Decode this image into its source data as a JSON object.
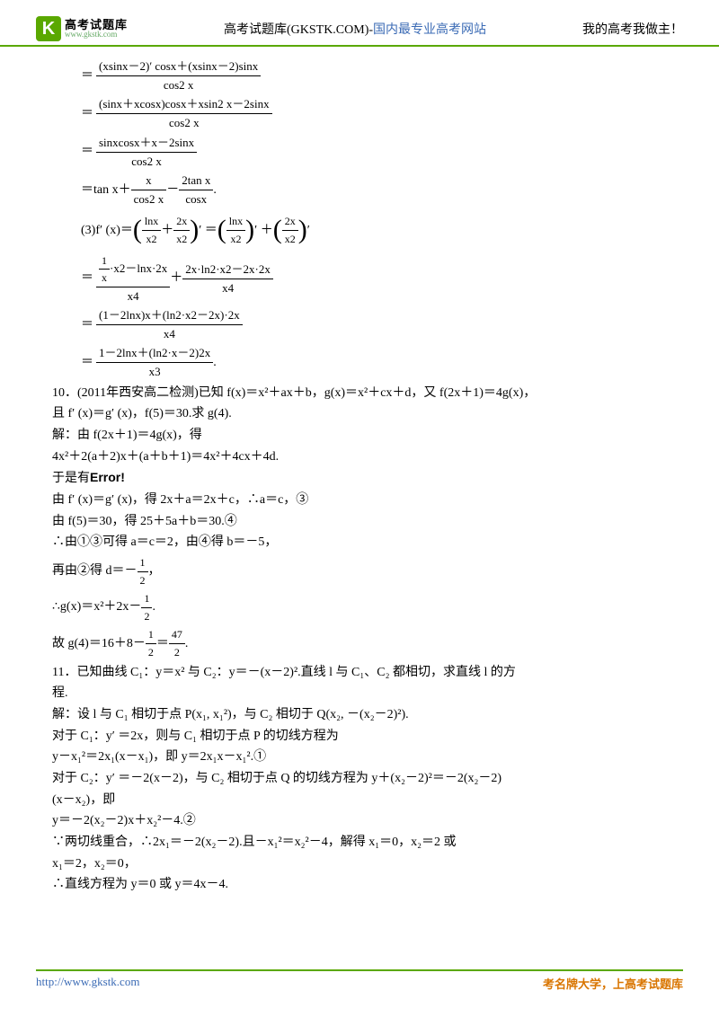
{
  "header": {
    "logo_letter": "K",
    "logo_cn": "高考试题库",
    "logo_url": "www.gkstk.com",
    "mid_black": "高考试题库(GKSTK.COM)-",
    "mid_blue": "国内最专业高考网站",
    "right": "我的高考我做主！"
  },
  "eqs": {
    "l1_num": "(xsinx－2)′ cosx＋(xsinx－2)sinx",
    "l1_den": "cos2 x",
    "l2_num": "(sinx＋xcosx)cosx＋xsin2 x－2sinx",
    "l2_den": "cos2 x",
    "l3_num": "sinxcosx＋x－2sinx",
    "l3_den": "cos2 x",
    "l4_pre": "＝tan x＋",
    "l4a_num": "x",
    "l4a_den": "cos2 x",
    "l4_minus": "－",
    "l4b_num": "2tan x",
    "l4b_den": "cosx",
    "l4_dot": " .",
    "l5_pre": "(3)f′  (x)＝",
    "l5a_num": "lnx",
    "l5a_den": "x2",
    "l5_plus": "＋",
    "l5b_num": "2x",
    "l5b_den": "x2",
    "l5_mid": "′ ＝",
    "l5c_num": "lnx",
    "l5c_den": "x2",
    "l5_mid2": "′ ＋",
    "l5d_num": "2x",
    "l5d_den": "x2",
    "l5_end": "′",
    "l6a_num_top": "1",
    "l6a_num_bot": "x",
    "l6a_rest": "·x2－lnx·2x",
    "l6a_den": "x4",
    "l6_plus": "＋",
    "l6b_num": "2x·ln2·x2－2x·2x",
    "l6b_den": "x4",
    "l7_num": "(1－2lnx)x＋(ln2·x2－2x)·2x",
    "l7_den": "x4",
    "l8_num": "1－2lnx＋(ln2·x－2)2x",
    "l8_den": "x3",
    "l8_dot": " ."
  },
  "p10": {
    "q": "10．(2011年西安高二检测)已知 f(x)＝x²＋ax＋b，g(x)＝x²＋cx＋d，又 f(2x＋1)＝4g(x)，",
    "q2": "且 f′ (x)＝g′ (x)，f(5)＝30.求 g(4).",
    "s1": "解：由 f(2x＋1)＝4g(x)，得",
    "s2": "4x²＋2(a＋2)x＋(a＋b＋1)＝4x²＋4cx＋4d.",
    "s3_pre": "于是有",
    "s3_err": "Error!",
    "s4": "由 f′ (x)＝g′ (x)，得 2x＋a＝2x＋c，∴a＝c，③",
    "s5": "由 f(5)＝30，得 25＋5a＋b＝30.④",
    "s6": "∴由①③可得 a＝c＝2，由④得 b＝－5，",
    "s7_pre": "再由②得 d＝－",
    "s7_num": "1",
    "s7_den": "2",
    "s7_end": "，",
    "s8_pre": "∴g(x)＝x²＋2x－",
    "s8_num": "1",
    "s8_den": "2",
    "s8_end": ".",
    "s9_pre": "故 g(4)＝16＋8－",
    "s9a_num": "1",
    "s9a_den": "2",
    "s9_mid": "＝",
    "s9b_num": "47",
    "s9b_den": "2",
    "s9_end": " ."
  },
  "p11": {
    "q": "11．已知曲线 C₁：y＝x² 与 C₂：y＝－(x－2)².直线 l 与 C₁、C₂ 都相切，求直线 l 的方",
    "q2": "程.",
    "s1": "解：设 l 与 C₁ 相切于点 P(x₁, x₁²)，与 C₂ 相切于 Q(x₂, －(x₂－2)²).",
    "s2": "对于 C₁：y′ ＝2x，则与 C₁ 相切于点 P 的切线方程为",
    "s3": "y－x₁²＝2x₁(x－x₁)，即 y＝2x₁x－x₁².①",
    "s4": "对于 C₂：y′ ＝－2(x－2)，与 C₂ 相切于点 Q 的切线方程为 y＋(x₂－2)²＝－2(x₂－2)",
    "s4b": "(x－x₂)，即",
    "s5": "y＝－2(x₂－2)x＋x₂²－4.②",
    "s6": "∵两切线重合，∴2x₁＝－2(x₂－2).且－x₁²＝x₂²－4，解得 x₁＝0，x₂＝2 或",
    "s6b": "x₁＝2，x₂＝0，",
    "s7": "∴直线方程为 y＝0 或 y＝4x－4."
  },
  "footer": {
    "left": "http://www.gkstk.com",
    "right": "考名牌大学，上高考试题库"
  },
  "colors": {
    "green": "#5aa800",
    "blue": "#3b6bb5",
    "orange": "#d97500",
    "text": "#000000",
    "bg": "#ffffff"
  }
}
